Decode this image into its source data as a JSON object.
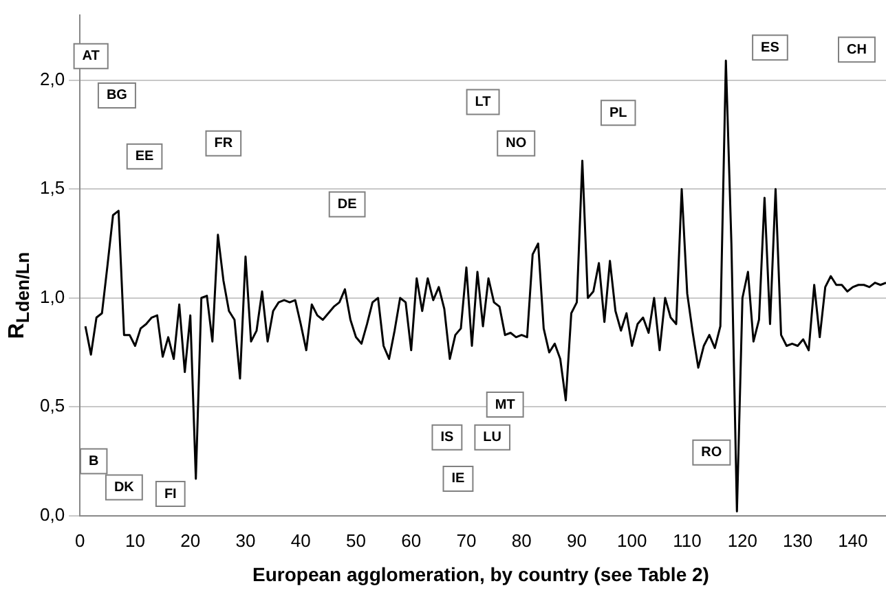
{
  "chart_data": {
    "type": "line",
    "xlabel": "European agglomeration, by country (see Table 2)",
    "ylabel": "R$_{Lden/Ln}$",
    "x": [
      1,
      2,
      3,
      4,
      5,
      6,
      7,
      8,
      9,
      10,
      11,
      12,
      13,
      14,
      15,
      16,
      17,
      18,
      19,
      20,
      21,
      22,
      23,
      24,
      25,
      26,
      27,
      28,
      29,
      30,
      31,
      32,
      33,
      34,
      35,
      36,
      37,
      38,
      39,
      40,
      41,
      42,
      43,
      44,
      45,
      46,
      47,
      48,
      49,
      50,
      51,
      52,
      53,
      54,
      55,
      56,
      57,
      58,
      59,
      60,
      61,
      62,
      63,
      64,
      65,
      66,
      67,
      68,
      69,
      70,
      71,
      72,
      73,
      74,
      75,
      76,
      77,
      78,
      79,
      80,
      81,
      82,
      83,
      84,
      85,
      86,
      87,
      88,
      89,
      90,
      91,
      92,
      93,
      94,
      95,
      96,
      97,
      98,
      99,
      100,
      101,
      102,
      103,
      104,
      105,
      106,
      107,
      108,
      109,
      110,
      111,
      112,
      113,
      114,
      115,
      116,
      117,
      118,
      119,
      120,
      121,
      122,
      123,
      124,
      125,
      126,
      127,
      128,
      129,
      130,
      131,
      132,
      133,
      134,
      135,
      136,
      137,
      138,
      139,
      140,
      141,
      142,
      143,
      144,
      145,
      146
    ],
    "series": [
      {
        "color": "#000000",
        "values": [
          0.87,
          0.74,
          0.91,
          0.93,
          1.15,
          1.38,
          1.4,
          0.83,
          0.83,
          0.78,
          0.86,
          0.88,
          0.91,
          0.92,
          0.73,
          0.82,
          0.72,
          0.97,
          0.66,
          0.92,
          0.17,
          1.0,
          1.01,
          0.8,
          1.29,
          1.08,
          0.94,
          0.9,
          0.63,
          1.19,
          0.8,
          0.85,
          1.03,
          0.8,
          0.94,
          0.98,
          0.99,
          0.98,
          0.99,
          0.88,
          0.76,
          0.97,
          0.92,
          0.9,
          0.93,
          0.96,
          0.98,
          1.04,
          0.9,
          0.82,
          0.79,
          0.88,
          0.98,
          1.0,
          0.78,
          0.72,
          0.85,
          1.0,
          0.98,
          0.76,
          1.09,
          0.94,
          1.09,
          0.99,
          1.05,
          0.95,
          0.72,
          0.83,
          0.86,
          1.14,
          0.78,
          1.12,
          0.87,
          1.09,
          0.98,
          0.96,
          0.83,
          0.84,
          0.82,
          0.83,
          0.82,
          1.2,
          1.25,
          0.86,
          0.75,
          0.79,
          0.72,
          0.53,
          0.93,
          0.98,
          1.63,
          1.0,
          1.03,
          1.16,
          0.89,
          1.17,
          0.94,
          0.85,
          0.93,
          0.78,
          0.88,
          0.91,
          0.84,
          1.0,
          0.76,
          1.0,
          0.91,
          0.88,
          1.5,
          1.02,
          0.84,
          0.68,
          0.78,
          0.83,
          0.77,
          0.87,
          2.09,
          1.25,
          0.02,
          1.0,
          1.12,
          0.8,
          0.9,
          1.46,
          0.88,
          1.5,
          0.83,
          0.78,
          0.79,
          0.78,
          0.81,
          0.76,
          1.06,
          0.82,
          1.05,
          1.1,
          1.06,
          1.06,
          1.03,
          1.05,
          1.06,
          1.06,
          1.05,
          1.07,
          1.06,
          1.07
        ]
      }
    ],
    "xlim": [
      0,
      146
    ],
    "xticks": [
      0,
      10,
      20,
      30,
      40,
      50,
      60,
      70,
      80,
      90,
      100,
      110,
      120,
      130,
      140
    ],
    "ylim": [
      0,
      2.3
    ],
    "yticks": [
      {
        "value": 0,
        "label": "0,0"
      },
      {
        "value": 0.5,
        "label": "0,5"
      },
      {
        "value": 1,
        "label": "1,0"
      },
      {
        "value": 1.5,
        "label": "1,5"
      },
      {
        "value": 2,
        "label": "2,0"
      }
    ],
    "grid": "y",
    "legend": false,
    "marker": "none",
    "line_style": "solid",
    "annotations": [
      {
        "text": "AT",
        "x": 2,
        "y": 2.11
      },
      {
        "text": "BG",
        "x": 6.7,
        "y": 1.93
      },
      {
        "text": "EE",
        "x": 11.7,
        "y": 1.65
      },
      {
        "text": "FR",
        "x": 26,
        "y": 1.71
      },
      {
        "text": "DE",
        "x": 48.4,
        "y": 1.43
      },
      {
        "text": "LT",
        "x": 73,
        "y": 1.9
      },
      {
        "text": "NO",
        "x": 79,
        "y": 1.71
      },
      {
        "text": "PL",
        "x": 97.5,
        "y": 1.85
      },
      {
        "text": "ES",
        "x": 125,
        "y": 2.15
      },
      {
        "text": "CH",
        "x": 140.7,
        "y": 2.14
      },
      {
        "text": "B",
        "x": 2.5,
        "y": 0.25
      },
      {
        "text": "DK",
        "x": 8,
        "y": 0.13
      },
      {
        "text": "FI",
        "x": 16.4,
        "y": 0.1
      },
      {
        "text": "IS",
        "x": 66.5,
        "y": 0.36
      },
      {
        "text": "IE",
        "x": 68.5,
        "y": 0.17
      },
      {
        "text": "LU",
        "x": 74.7,
        "y": 0.36
      },
      {
        "text": "MT",
        "x": 77,
        "y": 0.51
      },
      {
        "text": "RO",
        "x": 114.4,
        "y": 0.29
      }
    ]
  }
}
